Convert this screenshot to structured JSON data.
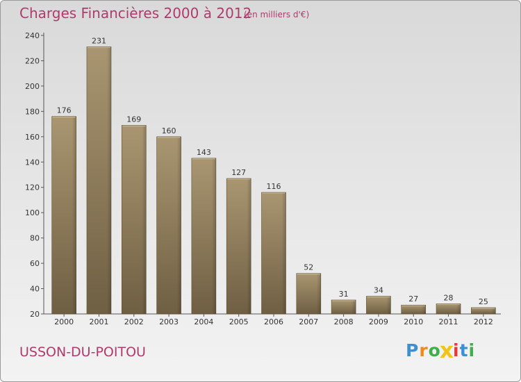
{
  "title": "Charges Financières 2000 à 2012",
  "subtitle": "(en milliers d'€)",
  "commune": "USSON-DU-POITOU",
  "logo": {
    "letters": [
      "P",
      "r",
      "o",
      "x",
      "i",
      "t",
      "i"
    ],
    "colors": [
      "#3d8fd1",
      "#f08a1c",
      "#3fae49",
      "#f0c419",
      "#e43a3a",
      "#3d8fd1",
      "#3fae49"
    ]
  },
  "colors": {
    "bar": "#8e7c5c",
    "bar_light": "#a8956f",
    "bar_dark": "#6e5e42",
    "accent": "#b03a6c"
  },
  "chart_data": {
    "type": "bar",
    "categories": [
      "2000",
      "2001",
      "2002",
      "2003",
      "2004",
      "2005",
      "2006",
      "2007",
      "2008",
      "2009",
      "2010",
      "2011",
      "2012"
    ],
    "values": [
      176,
      231,
      169,
      160,
      143,
      127,
      116,
      52,
      31,
      34,
      27,
      28,
      25
    ],
    "ylim": [
      20,
      240
    ],
    "yticks": [
      20,
      40,
      60,
      80,
      100,
      120,
      140,
      160,
      180,
      200,
      220,
      240
    ],
    "grid": false,
    "legend": "none"
  }
}
